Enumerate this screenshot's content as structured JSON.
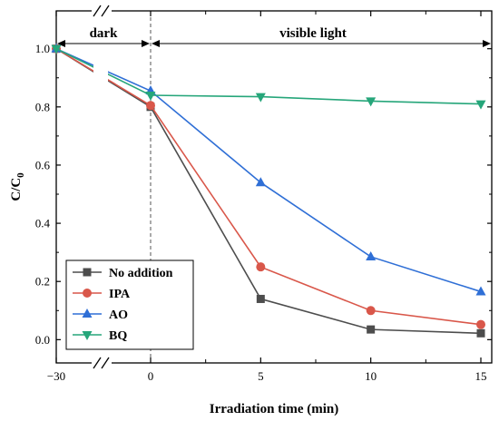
{
  "chart_data": {
    "type": "line",
    "xlabel": "Irradiation time (min)",
    "ylabel_main": "C/C",
    "ylabel_sub": "0",
    "x_ticks": [
      "-30",
      "0",
      "5",
      "10",
      "15"
    ],
    "y_ticks": [
      "0.0",
      "0.2",
      "0.4",
      "0.6",
      "0.8",
      "1.0"
    ],
    "ylim": [
      -0.08,
      1.13
    ],
    "x_axis_break": "between -30 and 0",
    "regions": [
      {
        "label": "dark",
        "from": -30,
        "to": 0
      },
      {
        "label": "visible light",
        "from": 0,
        "to": 15
      }
    ],
    "x": [
      -30,
      0,
      5,
      10,
      15
    ],
    "series": [
      {
        "name": "No addition",
        "color": "#4d4d4d",
        "marker": "square",
        "values": [
          1.0,
          0.8,
          0.14,
          0.035,
          0.022
        ]
      },
      {
        "name": "IPA",
        "color": "#d9574a",
        "marker": "circle",
        "values": [
          1.0,
          0.805,
          0.25,
          0.1,
          0.052
        ]
      },
      {
        "name": "AO",
        "color": "#2f6fd6",
        "marker": "triangle-up",
        "values": [
          1.0,
          0.855,
          0.54,
          0.285,
          0.165
        ]
      },
      {
        "name": "BQ",
        "color": "#26a67a",
        "marker": "triangle-down",
        "values": [
          1.0,
          0.84,
          0.835,
          0.82,
          0.81
        ]
      }
    ],
    "legend_position": "bottom-left",
    "grid": false
  }
}
